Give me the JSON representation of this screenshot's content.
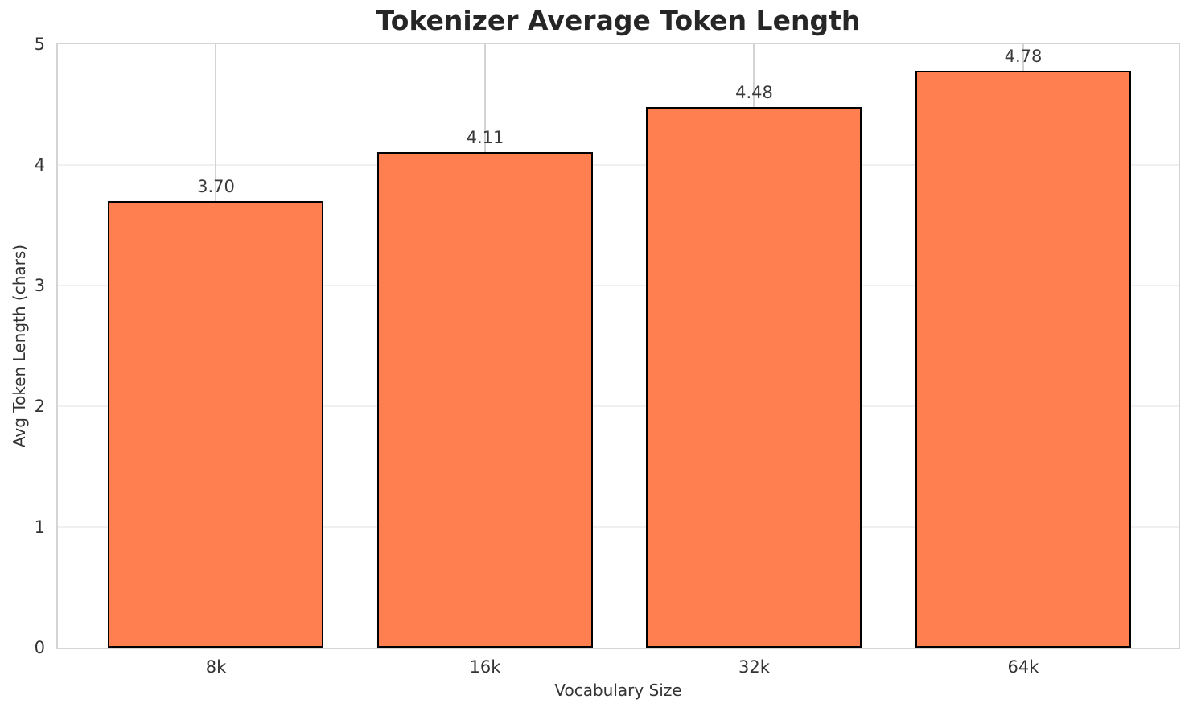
{
  "chart_data": {
    "type": "bar",
    "title": "Tokenizer Average Token Length",
    "xlabel": "Vocabulary Size",
    "ylabel": "Avg Token Length (chars)",
    "categories": [
      "8k",
      "16k",
      "32k",
      "64k"
    ],
    "values": [
      3.7,
      4.11,
      4.48,
      4.78
    ],
    "value_labels": [
      "3.70",
      "4.11",
      "4.48",
      "4.78"
    ],
    "ylim": [
      0,
      5
    ],
    "yticks": [
      0,
      1,
      2,
      3,
      4,
      5
    ],
    "grid": true,
    "legend": false,
    "colors": {
      "bar_fill": "#FF7F50",
      "bar_edge": "#000000",
      "hgrid": "#f0f0f0",
      "vgrid": "#d3d3d3",
      "spine": "#d4d4d4",
      "title_text": "#262626",
      "tick_text": "#333333",
      "value_text": "#3a3a3a",
      "background": "#ffffff"
    }
  }
}
